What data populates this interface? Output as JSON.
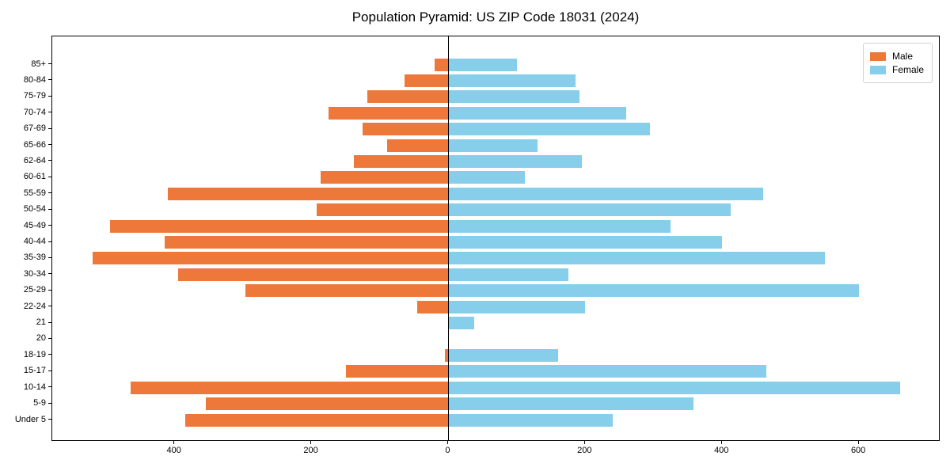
{
  "title": "Population Pyramid: US ZIP Code 18031 (2024)",
  "colors": {
    "male": "#ED7839",
    "female": "#87CEEB",
    "axis": "#000000"
  },
  "legend": {
    "items": [
      {
        "label": "Male"
      },
      {
        "label": "Female"
      }
    ],
    "position": "upper right"
  },
  "chart_data": {
    "type": "bar",
    "subtype": "population-pyramid",
    "title": "Population Pyramid: US ZIP Code 18031 (2024)",
    "categories": [
      "Under 5",
      "5-9",
      "10-14",
      "15-17",
      "18-19",
      "20",
      "21",
      "22-24",
      "25-29",
      "30-34",
      "35-39",
      "40-44",
      "45-49",
      "50-54",
      "55-59",
      "60-61",
      "62-64",
      "65-66",
      "67-69",
      "70-74",
      "75-79",
      "80-84",
      "85+"
    ],
    "series": [
      {
        "name": "Male",
        "color": "#ED7839",
        "direction": "left",
        "values": [
          385,
          355,
          465,
          150,
          5,
          0,
          0,
          46,
          297,
          395,
          520,
          415,
          495,
          193,
          410,
          187,
          138,
          90,
          125,
          175,
          119,
          64,
          20
        ]
      },
      {
        "name": "Female",
        "color": "#87CEEB",
        "direction": "right",
        "values": [
          240,
          358,
          660,
          465,
          160,
          0,
          38,
          200,
          600,
          175,
          550,
          400,
          325,
          413,
          460,
          112,
          195,
          130,
          295,
          260,
          192,
          186,
          100
        ]
      }
    ],
    "x_ticks": [
      -400,
      -200,
      0,
      200,
      400,
      600
    ],
    "x_tick_labels": [
      "400",
      "200",
      "0",
      "200",
      "400",
      "600"
    ],
    "xlim": [
      -579,
      719
    ],
    "zero_line": true,
    "grid": false,
    "legend_position": "upper right"
  }
}
